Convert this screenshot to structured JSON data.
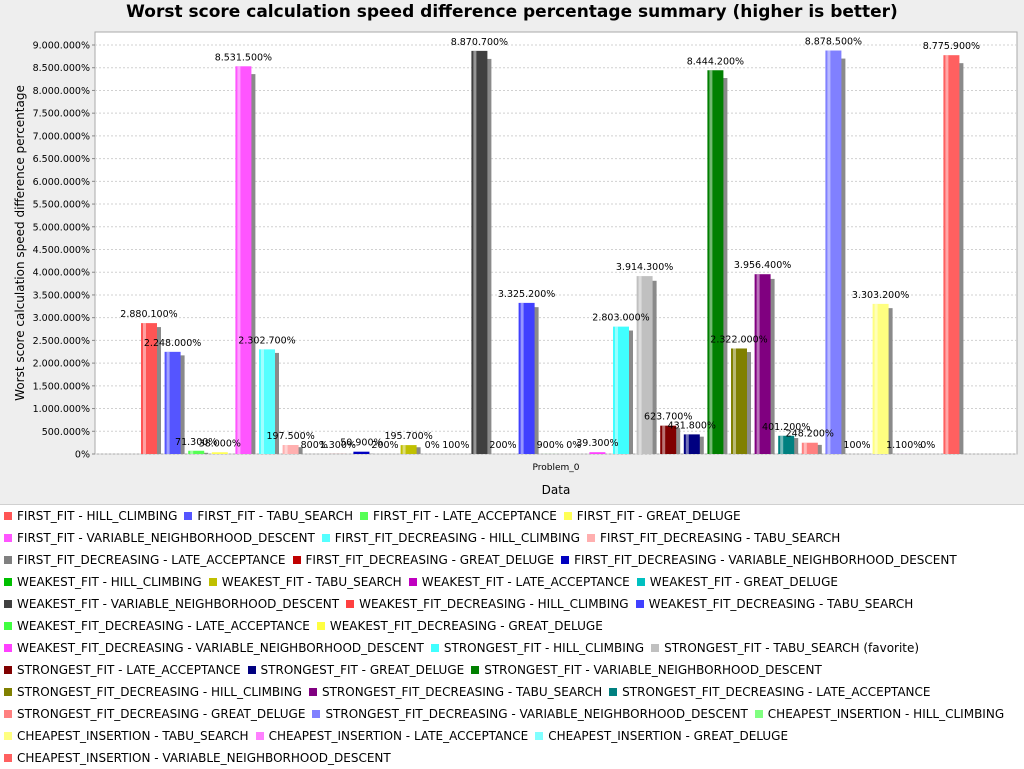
{
  "chart_data": {
    "type": "bar",
    "title": "Worst score calculation speed difference percentage summary (higher is better)",
    "xlabel": "Data",
    "ylabel": "Worst score calculation speed difference percentage",
    "categories": [
      "Problem_0"
    ],
    "ylim": [
      0,
      9000000
    ],
    "yticks": [
      0,
      500000,
      1000000,
      1500000,
      2000000,
      2500000,
      3000000,
      3500000,
      4000000,
      4500000,
      5000000,
      5500000,
      6000000,
      6500000,
      7000000,
      7500000,
      8000000,
      8500000,
      9000000
    ],
    "ytick_labels": [
      "0%",
      "500.000%",
      "1.000.000%",
      "1.500.000%",
      "2.000.000%",
      "2.500.000%",
      "3.000.000%",
      "3.500.000%",
      "4.000.000%",
      "4.500.000%",
      "5.000.000%",
      "5.500.000%",
      "6.000.000%",
      "6.500.000%",
      "7.000.000%",
      "7.500.000%",
      "8.000.000%",
      "8.500.000%",
      "9.000.000%"
    ],
    "grid": true,
    "legend_position": "bottom",
    "series": [
      {
        "name": "FIRST_FIT - HILL_CLIMBING",
        "color": "#ff5555",
        "value": 2880100,
        "label": "2.880.100%"
      },
      {
        "name": "FIRST_FIT - TABU_SEARCH",
        "color": "#5555ff",
        "value": 2248000,
        "label": "2.248.000%"
      },
      {
        "name": "FIRST_FIT - LATE_ACCEPTANCE",
        "color": "#55ff55",
        "value": 71300,
        "label": "71.300%"
      },
      {
        "name": "FIRST_FIT - GREAT_DELUGE",
        "color": "#ffff55",
        "value": 38000,
        "label": "38.000%"
      },
      {
        "name": "FIRST_FIT - VARIABLE_NEIGHBORHOOD_DESCENT",
        "color": "#ff55ff",
        "value": 8531500,
        "label": "8.531.500%"
      },
      {
        "name": "FIRST_FIT_DECREASING - HILL_CLIMBING",
        "color": "#55ffff",
        "value": 2302700,
        "label": "2.302.700%"
      },
      {
        "name": "FIRST_FIT_DECREASING - TABU_SEARCH",
        "color": "#ffafaf",
        "value": 197500,
        "label": "197.500%"
      },
      {
        "name": "FIRST_FIT_DECREASING - LATE_ACCEPTANCE",
        "color": "#808080",
        "value": 800,
        "label": "800%"
      },
      {
        "name": "FIRST_FIT_DECREASING - GREAT_DELUGE",
        "color": "#c00000",
        "value": 1300,
        "label": "1.300%"
      },
      {
        "name": "FIRST_FIT_DECREASING - VARIABLE_NEIGHBORHOOD_DESCENT",
        "color": "#0000c0",
        "value": 50900,
        "label": "50.900%"
      },
      {
        "name": "WEAKEST_FIT - HILL_CLIMBING",
        "color": "#00c000",
        "value": 200,
        "label": "200%"
      },
      {
        "name": "WEAKEST_FIT - TABU_SEARCH",
        "color": "#c0c000",
        "value": 195700,
        "label": "195.700%"
      },
      {
        "name": "WEAKEST_FIT - LATE_ACCEPTANCE",
        "color": "#c000c0",
        "value": 0,
        "label": "0%"
      },
      {
        "name": "WEAKEST_FIT - GREAT_DELUGE",
        "color": "#00c0c0",
        "value": 100,
        "label": "100%"
      },
      {
        "name": "WEAKEST_FIT - VARIABLE_NEIGHBORHOOD_DESCENT",
        "color": "#404040",
        "value": 8870700,
        "label": "8.870.700%"
      },
      {
        "name": "WEAKEST_FIT_DECREASING - HILL_CLIMBING",
        "color": "#ff4040",
        "value": 200,
        "label": "200%"
      },
      {
        "name": "WEAKEST_FIT_DECREASING - TABU_SEARCH",
        "color": "#4040ff",
        "value": 3325200,
        "label": "3.325.200%"
      },
      {
        "name": "WEAKEST_FIT_DECREASING - LATE_ACCEPTANCE",
        "color": "#40ff40",
        "value": 900,
        "label": "900%"
      },
      {
        "name": "WEAKEST_FIT_DECREASING - GREAT_DELUGE",
        "color": "#ffff40",
        "value": 0,
        "label": "0%"
      },
      {
        "name": "WEAKEST_FIT_DECREASING - VARIABLE_NEIGHBORHOOD_DESCENT",
        "color": "#ff40ff",
        "value": 39300,
        "label": "39.300%"
      },
      {
        "name": "STRONGEST_FIT - HILL_CLIMBING",
        "color": "#40ffff",
        "value": 2803000,
        "label": "2.803.000%"
      },
      {
        "name": "STRONGEST_FIT - TABU_SEARCH (favorite)",
        "color": "#c0c0c0",
        "value": 3914300,
        "label": "3.914.300%"
      },
      {
        "name": "STRONGEST_FIT - LATE_ACCEPTANCE",
        "color": "#800000",
        "value": 623700,
        "label": "623.700%"
      },
      {
        "name": "STRONGEST_FIT - GREAT_DELUGE",
        "color": "#000080",
        "value": 431800,
        "label": "431.800%"
      },
      {
        "name": "STRONGEST_FIT - VARIABLE_NEIGHBORHOOD_DESCENT",
        "color": "#008000",
        "value": 8444200,
        "label": "8.444.200%"
      },
      {
        "name": "STRONGEST_FIT_DECREASING - HILL_CLIMBING",
        "color": "#808000",
        "value": 2322000,
        "label": "2.322.000%"
      },
      {
        "name": "STRONGEST_FIT_DECREASING - TABU_SEARCH",
        "color": "#800080",
        "value": 3956400,
        "label": "3.956.400%"
      },
      {
        "name": "STRONGEST_FIT_DECREASING - LATE_ACCEPTANCE",
        "color": "#008080",
        "value": 401200,
        "label": "401.200%"
      },
      {
        "name": "STRONGEST_FIT_DECREASING - GREAT_DELUGE",
        "color": "#ff8080",
        "value": 248200,
        "label": "248.200%"
      },
      {
        "name": "STRONGEST_FIT_DECREASING - VARIABLE_NEIGHBORHOOD_DESCENT",
        "color": "#8080ff",
        "value": 8878500,
        "label": "8.878.500%"
      },
      {
        "name": "CHEAPEST_INSERTION - HILL_CLIMBING",
        "color": "#80ff80",
        "value": 100,
        "label": "100%"
      },
      {
        "name": "CHEAPEST_INSERTION - TABU_SEARCH",
        "color": "#ffff80",
        "value": 3303200,
        "label": "3.303.200%"
      },
      {
        "name": "CHEAPEST_INSERTION - LATE_ACCEPTANCE",
        "color": "#ff80ff",
        "value": 1100,
        "label": "1.100%"
      },
      {
        "name": "CHEAPEST_INSERTION - GREAT_DELUGE",
        "color": "#80ffff",
        "value": 0,
        "label": "0%"
      },
      {
        "name": "CHEAPEST_INSERTION - VARIABLE_NEIGHBORHOOD_DESCENT",
        "color": "#ff6060",
        "value": 8775900,
        "label": "8.775.900%"
      }
    ]
  }
}
